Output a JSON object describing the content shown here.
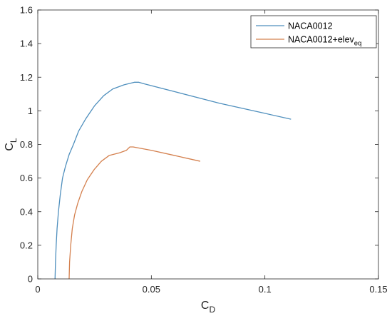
{
  "chart_data": {
    "type": "line",
    "title": "",
    "xlabel": {
      "main": "C",
      "sub": "D"
    },
    "ylabel": {
      "main": "C",
      "sub": "L"
    },
    "xlim": [
      0,
      0.15
    ],
    "ylim": [
      0,
      1.6
    ],
    "xticks": [
      0,
      0.05,
      0.1,
      0.15
    ],
    "xtick_labels": [
      "0",
      "0.05",
      "0.1",
      "0.15"
    ],
    "yticks": [
      0,
      0.2,
      0.4,
      0.6,
      0.8,
      1,
      1.2,
      1.4,
      1.6
    ],
    "ytick_labels": [
      "0",
      "0.2",
      "0.4",
      "0.6",
      "0.8",
      "1",
      "1.2",
      "1.4",
      "1.6"
    ],
    "grid": false,
    "legend_position": "top-right",
    "series": [
      {
        "name": "NACA0012",
        "name_sub": "",
        "color": "#4f8fbd",
        "x": [
          0.0076,
          0.0078,
          0.0081,
          0.0085,
          0.0091,
          0.0099,
          0.0109,
          0.0122,
          0.0138,
          0.0157,
          0.018,
          0.021,
          0.025,
          0.029,
          0.033,
          0.038,
          0.0425,
          0.0445,
          0.047,
          0.06,
          0.08,
          0.1,
          0.1115
        ],
        "y": [
          0.0,
          0.1,
          0.2,
          0.3,
          0.4,
          0.5,
          0.6,
          0.67,
          0.74,
          0.8,
          0.88,
          0.95,
          1.03,
          1.09,
          1.13,
          1.155,
          1.17,
          1.17,
          1.16,
          1.115,
          1.045,
          0.985,
          0.95
        ]
      },
      {
        "name": "NACA0012+elev",
        "name_sub": "eq",
        "color": "#d4804e",
        "x": [
          0.0138,
          0.014,
          0.0145,
          0.0152,
          0.0162,
          0.0176,
          0.0194,
          0.0218,
          0.0248,
          0.028,
          0.0315,
          0.036,
          0.039,
          0.0405,
          0.042,
          0.05,
          0.06,
          0.0715
        ],
        "y": [
          0.0,
          0.1,
          0.2,
          0.3,
          0.38,
          0.45,
          0.52,
          0.59,
          0.65,
          0.7,
          0.735,
          0.75,
          0.765,
          0.785,
          0.785,
          0.765,
          0.735,
          0.7
        ]
      }
    ]
  }
}
